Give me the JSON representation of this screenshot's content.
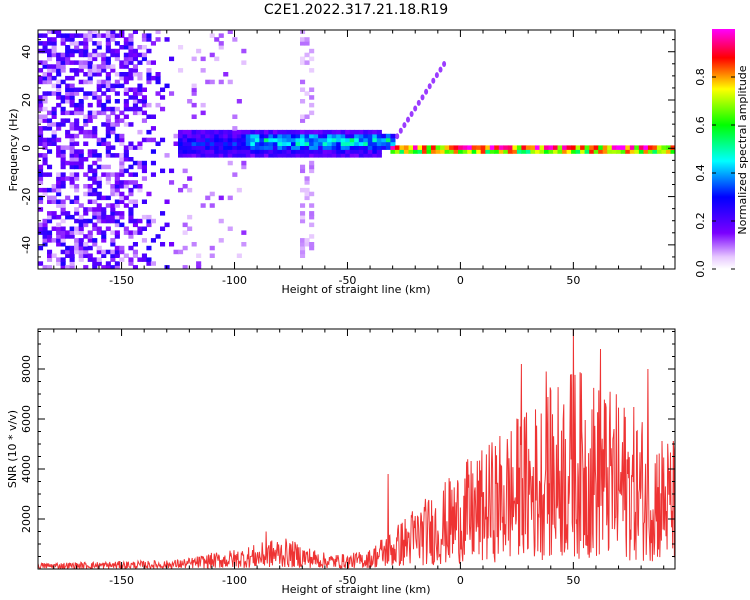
{
  "title": "C2E1.2022.317.21.18.R19",
  "chart_data": [
    {
      "type": "heatmap",
      "xlabel": "Height of straight line (km)",
      "ylabel": "Frequency (Hz)",
      "xlim": [
        -187,
        95
      ],
      "ylim": [
        -50,
        49
      ],
      "xticks": [
        -150,
        -100,
        -50,
        0,
        50
      ],
      "yticks": [
        -40,
        -20,
        0,
        20,
        40
      ],
      "colorbar": {
        "label": "Normalized spectral amplitude",
        "range": [
          0,
          1
        ],
        "ticks": [
          0.0,
          0.2,
          0.4,
          0.6,
          0.8
        ],
        "colormap": "rainbow (white-violet-blue-cyan-green-yellow-red-magenta)"
      },
      "features": [
        {
          "x_from": -187,
          "x_to": -125,
          "description": "broadband noise, amplitude 0.1-0.3, full frequency range"
        },
        {
          "x_from": -125,
          "x_to": -35,
          "center_freq": 2,
          "band_halfwidth": 6,
          "amplitude": 0.3
        },
        {
          "x_from": -95,
          "x_to": -30,
          "center_freq": 3,
          "band_halfwidth": 3,
          "amplitude": 0.5
        },
        {
          "x_from": -30,
          "x_to": 95,
          "center_freq": 0,
          "band_halfwidth": 2,
          "amplitude": 0.95
        },
        {
          "x_from": -30,
          "x_to": -5,
          "trace": "faint rising streak from 5 Hz to 37 Hz"
        }
      ]
    },
    {
      "type": "line",
      "xlabel": "Height of straight line (km)",
      "ylabel": "SNR (10 * v/v)",
      "xlim": [
        -187,
        95
      ],
      "ylim": [
        0,
        9600
      ],
      "xticks": [
        -150,
        -100,
        -50,
        0,
        50
      ],
      "yticks": [
        2000,
        4000,
        6000,
        8000
      ],
      "series": [
        {
          "color": "#ee3333",
          "envelope_x": [
            -187,
            -160,
            -130,
            -120,
            -110,
            -100,
            -90,
            -80,
            -70,
            -60,
            -50,
            -40,
            -35,
            -30,
            -20,
            -10,
            0,
            10,
            20,
            30,
            40,
            50,
            60,
            70,
            80,
            95
          ],
          "envelope_y": [
            250,
            300,
            350,
            450,
            650,
            800,
            1000,
            1300,
            1000,
            650,
            600,
            800,
            1300,
            1600,
            2600,
            3200,
            4200,
            4800,
            5800,
            6500,
            7300,
            8200,
            7600,
            7000,
            6300,
            5200
          ],
          "peaks": [
            {
              "x": 50,
              "y": 9600
            },
            {
              "x": 62,
              "y": 8800
            },
            {
              "x": 27,
              "y": 8200
            },
            {
              "x": 38,
              "y": 7900
            },
            {
              "x": 83,
              "y": 8000
            },
            {
              "x": -32,
              "y": 3800
            },
            {
              "x": -86,
              "y": 1500
            }
          ]
        }
      ]
    }
  ]
}
